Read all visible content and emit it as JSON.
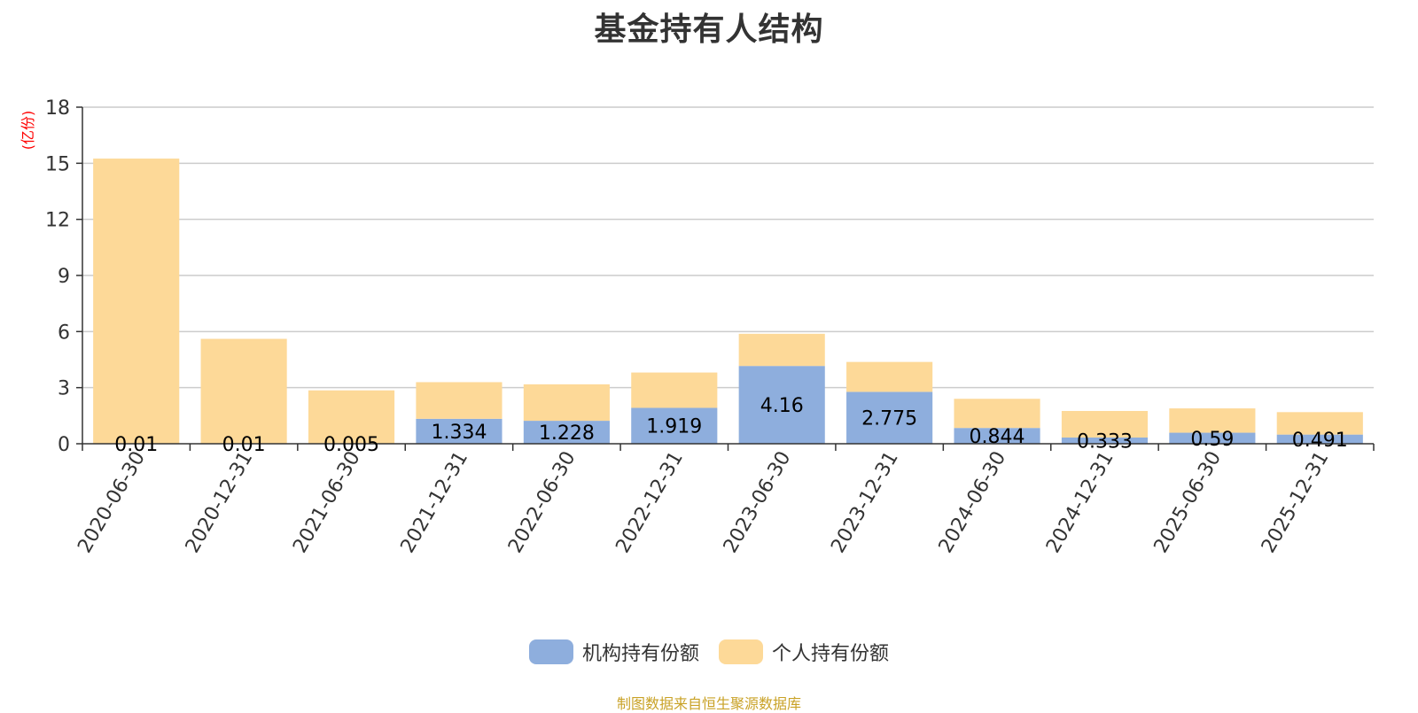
{
  "chart_data": {
    "type": "bar",
    "stacked": true,
    "title": "基金持有人结构",
    "ylabel": "(亿份)",
    "xlabel": "",
    "ylim": [
      0,
      18
    ],
    "yticks": [
      0,
      3,
      6,
      9,
      12,
      15,
      18
    ],
    "grid": true,
    "legend_position": "bottom",
    "categories": [
      "2020-06-30",
      "2020-12-31",
      "2021-06-30",
      "2021-12-31",
      "2022-06-30",
      "2022-12-31",
      "2023-06-30",
      "2023-12-31",
      "2024-06-30",
      "2024-12-31",
      "2025-06-30",
      "2025-12-31"
    ],
    "series": [
      {
        "name": "机构持有份额",
        "color": "#8eaedd",
        "values": [
          0.01,
          0.01,
          0.005,
          1.334,
          1.228,
          1.919,
          4.16,
          2.775,
          0.844,
          0.333,
          0.59,
          0.491
        ],
        "labels": [
          "0.01",
          "0.01",
          "0.005",
          "1.334",
          "1.228",
          "1.919",
          "4.16",
          "2.775",
          "0.844",
          "0.333",
          "0.59",
          "0.491"
        ]
      },
      {
        "name": "个人持有份额",
        "color": "#fdd998",
        "values": [
          15.24,
          5.6,
          2.85,
          1.96,
          1.95,
          1.89,
          1.72,
          1.6,
          1.56,
          1.42,
          1.3,
          1.2
        ]
      }
    ]
  },
  "source_note": "制图数据来自恒生聚源数据库"
}
